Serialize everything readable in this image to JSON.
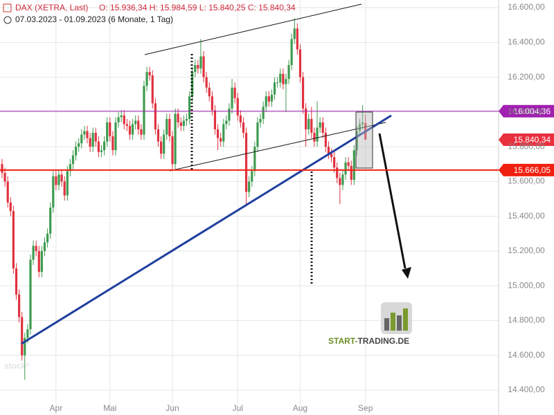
{
  "chart_data": {
    "type": "candlestick",
    "header_title": "DAX (XETRA, Last)",
    "header_ohlc": "O: 15.936,34  H: 15.984,59  L: 15.840,25  C: 15.840,34",
    "date_range": "07.03.2023 - 01.09.2023  (6 Monate, 1 Tag)",
    "watermark": "stock³",
    "logo_left": "START-",
    "logo_right": "TRADING.DE",
    "up_color": "#3e9b4f",
    "down_color": "#e0323f",
    "grid": true,
    "ylim": [
      14257,
      16644
    ],
    "xlim": [
      -0.73,
      174.9
    ],
    "yticks": [
      {
        "value": 14400,
        "label": "14.400,00"
      },
      {
        "value": 14600,
        "label": "14.600,00"
      },
      {
        "value": 14800,
        "label": "14.800,00"
      },
      {
        "value": 15000,
        "label": "15.000,00"
      },
      {
        "value": 15200,
        "label": "15.200,00"
      },
      {
        "value": 15400,
        "label": "15.400,00"
      },
      {
        "value": 15600,
        "label": "15.600,00"
      },
      {
        "value": 15800,
        "label": "15.800,00"
      },
      {
        "value": 16000,
        "label": "16.000,00"
      },
      {
        "value": 16200,
        "label": "16.200,00"
      },
      {
        "value": 16400,
        "label": "16.400,00"
      },
      {
        "value": 16600,
        "label": "16.600,00"
      }
    ],
    "xticks": [
      {
        "value": 19,
        "label": "Apr"
      },
      {
        "value": 38,
        "label": "Mai"
      },
      {
        "value": 60,
        "label": "Jun"
      },
      {
        "value": 83,
        "label": "Jul"
      },
      {
        "value": 105,
        "label": "Aug"
      },
      {
        "value": 128,
        "label": "Sep"
      }
    ],
    "price_lines": [
      {
        "value": 16004.36,
        "label": "16.004,36",
        "color": "#a020b0",
        "line": true
      },
      {
        "value": 15840.34,
        "label": "15.840,34",
        "color": "#e8303f",
        "line": false
      },
      {
        "value": 15666.05,
        "label": "15.666,05",
        "color": "#f02010",
        "line": true
      }
    ],
    "open": [
      15700,
      15650,
      15600,
      15480,
      15430,
      15100,
      14950,
      14820,
      14600,
      14700,
      14750,
      15150,
      15230,
      15200,
      15080,
      15200,
      15250,
      15300,
      15450,
      15630,
      15580,
      15640,
      15600,
      15520,
      15660,
      15700,
      15750,
      15800,
      15820,
      15870,
      15890,
      15850,
      15800,
      15880,
      15830,
      15770,
      15780,
      15830,
      15940,
      15860,
      15780,
      15940,
      15970,
      15980,
      15930,
      15920,
      15870,
      15930,
      15950,
      15900,
      15870,
      16150,
      16230,
      16210,
      16050,
      15900,
      15830,
      15760,
      15870,
      15960,
      15860,
      15700,
      15990,
      15940,
      15920,
      15950,
      15960,
      16090,
      16230,
      16270,
      16250,
      16320,
      16200,
      16140,
      16090,
      16010,
      15900,
      15850,
      15830,
      15930,
      15950,
      16020,
      16140,
      16080,
      15980,
      15940,
      15880,
      15540,
      15600,
      15660,
      15800,
      15940,
      15960,
      16030,
      16090,
      16060,
      16100,
      16170,
      16170,
      16220,
      16160,
      16190,
      16270,
      16420,
      16480,
      16360,
      16200,
      16020,
      15900,
      15960,
      15880,
      15830,
      15910,
      15940,
      15880,
      15800,
      15760,
      15740,
      15680,
      15620,
      15580,
      15640,
      15710,
      15690,
      15610,
      15780,
      15890,
      15930,
      15936.34
    ],
    "high": [
      15730,
      15680,
      15630,
      15510,
      15460,
      15130,
      14980,
      14850,
      14730,
      14780,
      15180,
      15260,
      15260,
      15230,
      15230,
      15280,
      15330,
      15480,
      15660,
      15660,
      15670,
      15670,
      15630,
      15690,
      15730,
      15780,
      15830,
      15850,
      15900,
      15920,
      15920,
      15880,
      15910,
      15910,
      15860,
      15810,
      15860,
      15970,
      15970,
      15890,
      15970,
      16000,
      16010,
      16010,
      15960,
      15950,
      15960,
      15980,
      15980,
      15930,
      16180,
      16260,
      16260,
      16240,
      16080,
      15930,
      15860,
      15900,
      15990,
      15990,
      15890,
      16020,
      16020,
      15970,
      15980,
      15990,
      16120,
      16260,
      16300,
      16300,
      16420,
      16350,
      16230,
      16170,
      16120,
      16040,
      15930,
      15880,
      15960,
      15980,
      16050,
      16190,
      16170,
      16110,
      16010,
      15970,
      15910,
      15630,
      15690,
      15830,
      15970,
      15990,
      16060,
      16120,
      16120,
      16130,
      16200,
      16200,
      16250,
      16250,
      16220,
      16300,
      16450,
      16540,
      16510,
      16390,
      16230,
      16050,
      15990,
      16030,
      15910,
      16060,
      15970,
      15970,
      15910,
      15830,
      15790,
      15770,
      15710,
      15650,
      15670,
      15740,
      15740,
      15720,
      15810,
      15920,
      15960,
      16040,
      15984.59
    ],
    "low": [
      15620,
      15570,
      15450,
      15400,
      15070,
      14920,
      14790,
      14570,
      14460,
      14670,
      14720,
      15120,
      15170,
      15050,
      15050,
      15170,
      15220,
      15270,
      15420,
      15550,
      15550,
      15570,
      15490,
      15490,
      15630,
      15670,
      15720,
      15770,
      15790,
      15840,
      15820,
      15770,
      15770,
      15800,
      15740,
      15740,
      15750,
      15800,
      15830,
      15750,
      15750,
      15910,
      15940,
      15900,
      15890,
      15840,
      15840,
      15900,
      15870,
      15840,
      15840,
      16120,
      16180,
      16020,
      15870,
      15800,
      15730,
      15730,
      15840,
      15830,
      15660,
      15670,
      15910,
      15890,
      15890,
      15920,
      15930,
      16060,
      16200,
      16220,
      16220,
      16170,
      16110,
      16060,
      15980,
      15870,
      15780,
      15800,
      15800,
      15900,
      15920,
      15990,
      16050,
      15950,
      15910,
      15850,
      15470,
      15510,
      15570,
      15630,
      15770,
      15910,
      15930,
      16000,
      16030,
      16030,
      16070,
      16140,
      16140,
      16130,
      16000,
      16160,
      16240,
      16390,
      16330,
      16170,
      15990,
      15800,
      15870,
      15850,
      15800,
      15800,
      15880,
      15850,
      15770,
      15730,
      15710,
      15650,
      15590,
      15470,
      15550,
      15610,
      15660,
      15580,
      15580,
      15750,
      15860,
      15900,
      15840.25
    ],
    "close": [
      15650,
      15600,
      15480,
      15430,
      15100,
      14950,
      14820,
      14600,
      14700,
      14750,
      15150,
      15230,
      15200,
      15080,
      15200,
      15250,
      15300,
      15450,
      15630,
      15580,
      15640,
      15600,
      15520,
      15660,
      15700,
      15750,
      15800,
      15820,
      15870,
      15890,
      15850,
      15800,
      15880,
      15830,
      15770,
      15780,
      15830,
      15940,
      15860,
      15780,
      15940,
      15970,
      15980,
      15930,
      15920,
      15870,
      15930,
      15950,
      15900,
      15870,
      16150,
      16230,
      16210,
      16050,
      15900,
      15830,
      15760,
      15870,
      15960,
      15860,
      15700,
      15990,
      15940,
      15920,
      15950,
      15960,
      16090,
      16230,
      16270,
      16250,
      16320,
      16200,
      16140,
      16090,
      16010,
      15900,
      15850,
      15830,
      15930,
      15950,
      16020,
      16140,
      16080,
      15980,
      15940,
      15880,
      15540,
      15600,
      15660,
      15800,
      15940,
      15960,
      16030,
      16090,
      16060,
      16100,
      16170,
      16170,
      16220,
      16160,
      16190,
      16270,
      16420,
      16480,
      16360,
      16200,
      16020,
      15900,
      15960,
      15880,
      15830,
      15910,
      15940,
      15880,
      15800,
      15760,
      15740,
      15680,
      15620,
      15580,
      15640,
      15710,
      15690,
      15610,
      15780,
      15890,
      15930,
      15940,
      15840.34
    ]
  }
}
